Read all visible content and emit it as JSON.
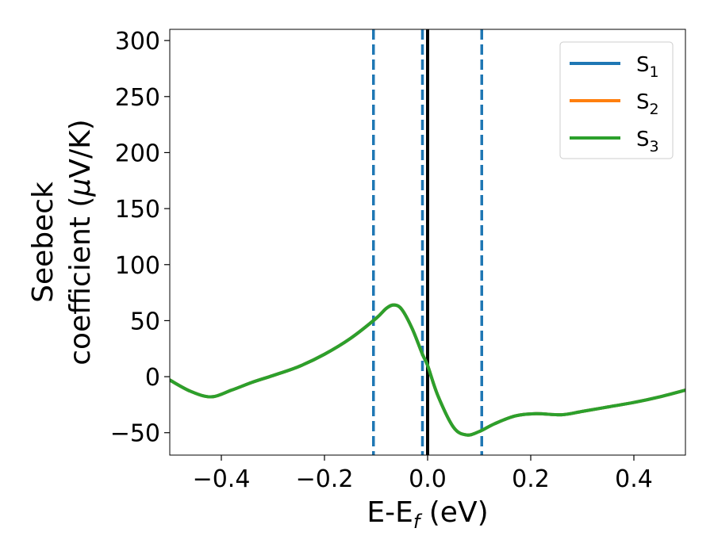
{
  "chart_data": {
    "type": "line",
    "xlabel": {
      "main": "E-E",
      "sub": "f",
      "tail": " (eV)"
    },
    "ylabel": {
      "line1": "Seebeck",
      "line2_pre": "coefficient  (",
      "line2_mu": "μ",
      "line2_post": "V/K)"
    },
    "xlim": [
      -0.5,
      0.5
    ],
    "ylim": [
      -70,
      310
    ],
    "xticks": [
      -0.4,
      -0.2,
      0.0,
      0.2,
      0.4
    ],
    "xtick_labels": [
      "−0.4",
      "−0.2",
      "0.0",
      "0.2",
      "0.4"
    ],
    "yticks": [
      -50,
      0,
      50,
      100,
      150,
      200,
      250,
      300
    ],
    "ytick_labels": [
      "−50",
      "0",
      "50",
      "100",
      "150",
      "200",
      "250",
      "300"
    ],
    "grid": false,
    "legend_position": "top-right",
    "vlines": [
      {
        "x": -0.105,
        "style": "dashed",
        "color": "#1f77b4"
      },
      {
        "x": -0.01,
        "style": "dashed",
        "color": "#1f77b4"
      },
      {
        "x": 0.0,
        "style": "solid",
        "color": "#000000"
      },
      {
        "x": 0.105,
        "style": "dashed",
        "color": "#1f77b4"
      }
    ],
    "series": [
      {
        "name": "S",
        "subscript": "1",
        "color": "#1f77b4",
        "x": [
          -0.5,
          -0.46,
          -0.42,
          -0.38,
          -0.34,
          -0.3,
          -0.25,
          -0.2,
          -0.15,
          -0.1,
          -0.08,
          -0.065,
          -0.05,
          -0.03,
          -0.01,
          0.0,
          0.02,
          0.05,
          0.075,
          0.1,
          0.13,
          0.17,
          0.21,
          0.26,
          0.3,
          0.35,
          0.4,
          0.45,
          0.5
        ],
        "y": [
          -3,
          -13,
          -18,
          -12,
          -5,
          1,
          9,
          20,
          34,
          52,
          61,
          64,
          60,
          43,
          20,
          10,
          -17,
          -45,
          -52,
          -49,
          -42,
          -35,
          -33,
          -34,
          -31,
          -27,
          -23,
          -18,
          -12
        ]
      },
      {
        "name": "S",
        "subscript": "2",
        "color": "#ff7f0e",
        "x": [
          -0.5,
          -0.46,
          -0.42,
          -0.38,
          -0.34,
          -0.3,
          -0.25,
          -0.2,
          -0.15,
          -0.1,
          -0.08,
          -0.065,
          -0.05,
          -0.03,
          -0.01,
          0.0,
          0.02,
          0.05,
          0.075,
          0.1,
          0.13,
          0.17,
          0.21,
          0.26,
          0.3,
          0.35,
          0.4,
          0.45,
          0.5
        ],
        "y": [
          -3,
          -13,
          -18,
          -12,
          -5,
          1,
          9,
          20,
          34,
          52,
          61,
          64,
          60,
          43,
          20,
          10,
          -17,
          -45,
          -52,
          -49,
          -42,
          -35,
          -33,
          -34,
          -31,
          -27,
          -23,
          -18,
          -12
        ]
      },
      {
        "name": "S",
        "subscript": "3",
        "color": "#2ca02c",
        "x": [
          -0.5,
          -0.46,
          -0.42,
          -0.38,
          -0.34,
          -0.3,
          -0.25,
          -0.2,
          -0.15,
          -0.1,
          -0.08,
          -0.065,
          -0.05,
          -0.03,
          -0.01,
          0.0,
          0.02,
          0.05,
          0.075,
          0.1,
          0.13,
          0.17,
          0.21,
          0.26,
          0.3,
          0.35,
          0.4,
          0.45,
          0.5
        ],
        "y": [
          -3,
          -13,
          -18,
          -12,
          -5,
          1,
          9,
          20,
          34,
          52,
          61,
          64,
          60,
          43,
          20,
          10,
          -17,
          -45,
          -52,
          -49,
          -42,
          -35,
          -33,
          -34,
          -31,
          -27,
          -23,
          -18,
          -12
        ]
      }
    ]
  }
}
